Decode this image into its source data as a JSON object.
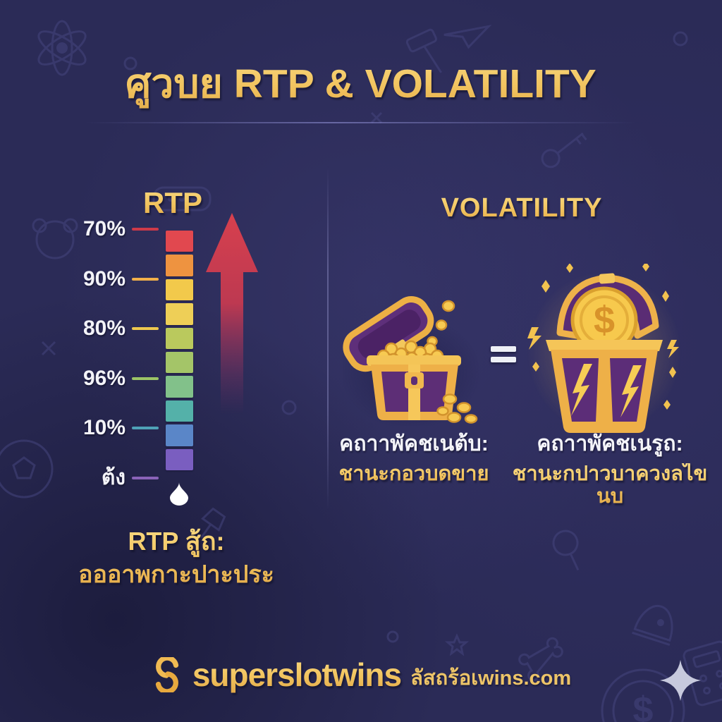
{
  "title": "ศูวบย RTP & VOLATILITY",
  "rtp_panel": {
    "heading": "RTP",
    "scale": {
      "block_colors": [
        "#e1484f",
        "#ee9340",
        "#f2c94b",
        "#eecf57",
        "#bac95d",
        "#a4c568",
        "#82c18a",
        "#54b1a9",
        "#5a86c8",
        "#7a5ec0"
      ],
      "ticks": [
        {
          "label": "70%",
          "color": "#ce3a49"
        },
        {
          "label": "90%",
          "color": "#f2b04a"
        },
        {
          "label": "80%",
          "color": "#eec84e"
        },
        {
          "label": "96%",
          "color": "#9cc466"
        },
        {
          "label": "10%",
          "color": "#4fa2b7"
        },
        {
          "label": "ต้ง",
          "color": "#8a63b8"
        }
      ]
    },
    "caption_line1": "RTP สู้ถ:",
    "caption_line2": "อออาพกาะปาะประ"
  },
  "volatility_panel": {
    "heading": "VOLATILITY",
    "equals_sign": "=",
    "coin_symbol": "$",
    "low_volatility": {
      "title": "คถาาพัคชเนต้บ:",
      "subtitle": "ชานะกอวบดขาย"
    },
    "high_volatility": {
      "title": "คถาาพัคชเนรูถ:",
      "subtitle": "ชานะกปาวบาควงลไขนบ"
    }
  },
  "footer": {
    "brand": "superslotwins",
    "domain_text": "ลัสถร้อเwins.com"
  },
  "icons": [
    "atom-icon",
    "teddy-bear-icon",
    "soccer-ball-icon",
    "chat-dots-icon",
    "pushpin-icon",
    "hammer-icon",
    "paper-plane-icon",
    "key-icon",
    "magnifier-icon",
    "star-icon",
    "bell-icon",
    "bone-icon",
    "dollar-coin-icon",
    "calculator-icon",
    "sparkle-icon",
    "treasure-chest-open-icon",
    "treasure-chest-jackpot-icon",
    "up-arrow-icon",
    "droplet-icon"
  ],
  "colors": {
    "background": "#2b2b57",
    "gold": "#f0c261",
    "white": "#f4f4f8",
    "arrow_red": "#d23c4d",
    "chest_purple": "#5e2f7a"
  }
}
